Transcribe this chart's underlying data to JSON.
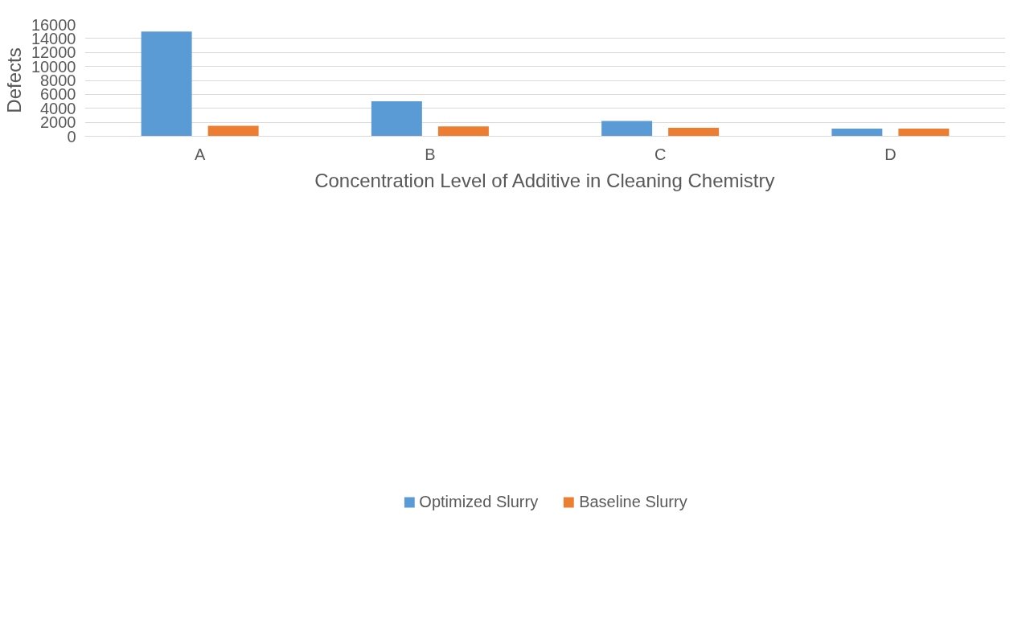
{
  "chart_data": {
    "type": "bar",
    "xlabel": "Concentration Level of Additive in Cleaning Chemistry",
    "ylabel": "Defects",
    "categories": [
      "A",
      "B",
      "C",
      "D"
    ],
    "series": [
      {
        "name": "Optimized Slurry",
        "color": "#5b9bd5",
        "values": [
          15000,
          5000,
          2200,
          1100
        ]
      },
      {
        "name": "Baseline Slurry",
        "color": "#ed7d31",
        "values": [
          1500,
          1400,
          1200,
          1100
        ]
      }
    ],
    "ylim": [
      0,
      16000
    ],
    "yticks": [
      0,
      2000,
      4000,
      6000,
      8000,
      10000,
      12000,
      14000,
      16000
    ],
    "grid": "y",
    "legend": "bottom"
  }
}
